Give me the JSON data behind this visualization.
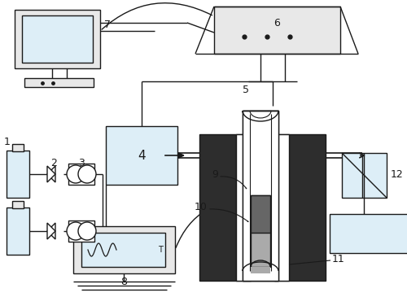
{
  "bg_color": "#ffffff",
  "lc": "#1a1a1a",
  "light_blue": "#ddeef7",
  "light_gray": "#e8e8e8",
  "dark_gray": "#2d2d2d",
  "med_gray": "#888888",
  "dark_med": "#555555",
  "furnace_white": "#f0f5f8"
}
